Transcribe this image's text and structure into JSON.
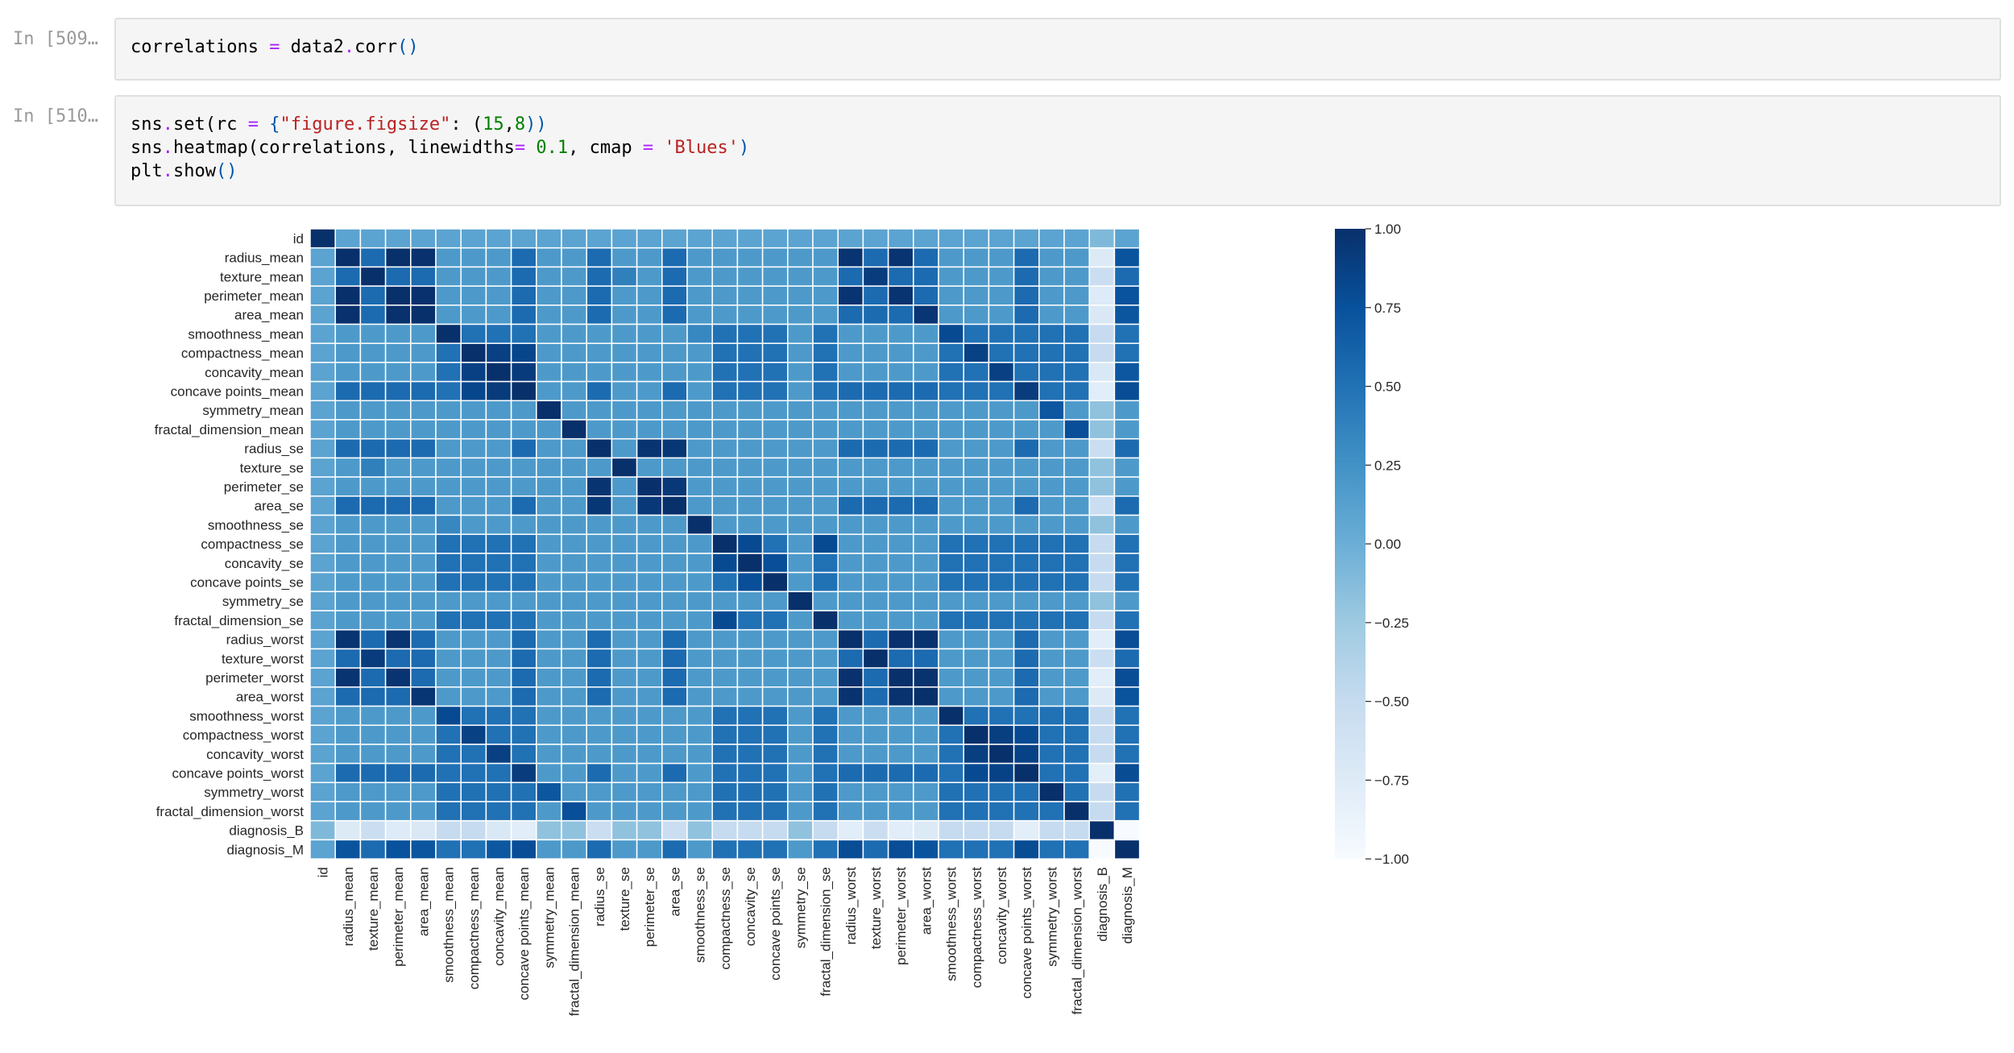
{
  "cells": [
    {
      "prompt": "In [509…",
      "code_lines": [
        [
          {
            "t": "correlations "
          },
          {
            "t": "=",
            "c": "op"
          },
          {
            "t": " data2"
          },
          {
            "t": ".",
            "c": "op"
          },
          {
            "t": "corr"
          },
          {
            "t": "()",
            "c": "par"
          }
        ]
      ]
    },
    {
      "prompt": "In [510…",
      "code_lines": [
        [
          {
            "t": "sns"
          },
          {
            "t": ".",
            "c": "op"
          },
          {
            "t": "set(rc "
          },
          {
            "t": "=",
            "c": "op"
          },
          {
            "t": " {",
            "c": "par"
          },
          {
            "t": "\"figure.figsize\"",
            "c": "str"
          },
          {
            "t": ": ("
          },
          {
            "t": "15",
            "c": "num"
          },
          {
            "t": ","
          },
          {
            "t": "8",
            "c": "num"
          },
          {
            "t": "))",
            "c": "par"
          }
        ],
        [
          {
            "t": "sns"
          },
          {
            "t": ".",
            "c": "op"
          },
          {
            "t": "heatmap(correlations, linewidths"
          },
          {
            "t": "=",
            "c": "op"
          },
          {
            "t": " "
          },
          {
            "t": "0.1",
            "c": "num"
          },
          {
            "t": ", cmap "
          },
          {
            "t": "=",
            "c": "op"
          },
          {
            "t": " "
          },
          {
            "t": "'Blues'",
            "c": "str"
          },
          {
            "t": ")",
            "c": "par"
          }
        ],
        [
          {
            "t": "plt"
          },
          {
            "t": ".",
            "c": "op"
          },
          {
            "t": "show"
          },
          {
            "t": "()",
            "c": "par"
          }
        ]
      ]
    }
  ],
  "chart_data": {
    "type": "heatmap",
    "colormap": "Blues",
    "vmin": -1.0,
    "vmax": 1.0,
    "colorbar_ticks": [
      "1.00",
      "0.75",
      "0.50",
      "0.25",
      "0.00",
      "−0.25",
      "−0.50",
      "−0.75",
      "−1.00"
    ],
    "labels": [
      "id",
      "radius_mean",
      "texture_mean",
      "perimeter_mean",
      "area_mean",
      "smoothness_mean",
      "compactness_mean",
      "concavity_mean",
      "concave points_mean",
      "symmetry_mean",
      "fractal_dimension_mean",
      "radius_se",
      "texture_se",
      "perimeter_se",
      "area_se",
      "smoothness_se",
      "compactness_se",
      "concavity_se",
      "concave points_se",
      "symmetry_se",
      "fractal_dimension_se",
      "radius_worst",
      "texture_worst",
      "perimeter_worst",
      "area_worst",
      "smoothness_worst",
      "compactness_worst",
      "concavity_worst",
      "concave points_worst",
      "symmetry_worst",
      "fractal_dimension_worst",
      "diagnosis_B",
      "diagnosis_M"
    ],
    "groups": [
      [
        1,
        2,
        3,
        4,
        8,
        11,
        14,
        21,
        22,
        23,
        24,
        28,
        32,
        0
      ],
      [
        5,
        6,
        7,
        8,
        16,
        17,
        18,
        20,
        25,
        26,
        27,
        28,
        29,
        30,
        32,
        0
      ]
    ],
    "notable_pairs": [
      [
        1,
        3,
        1.0
      ],
      [
        1,
        4,
        0.99
      ],
      [
        3,
        4,
        0.99
      ],
      [
        21,
        23,
        0.99
      ],
      [
        21,
        24,
        0.98
      ],
      [
        23,
        24,
        0.98
      ],
      [
        1,
        21,
        0.97
      ],
      [
        1,
        23,
        0.97
      ],
      [
        3,
        21,
        0.97
      ],
      [
        3,
        23,
        0.97
      ],
      [
        4,
        24,
        0.96
      ],
      [
        11,
        14,
        0.95
      ],
      [
        11,
        13,
        0.97
      ],
      [
        13,
        14,
        0.94
      ],
      [
        6,
        7,
        0.88
      ],
      [
        6,
        8,
        0.83
      ],
      [
        7,
        8,
        0.92
      ],
      [
        26,
        27,
        0.89
      ],
      [
        27,
        28,
        0.86
      ],
      [
        26,
        28,
        0.8
      ],
      [
        16,
        17,
        0.8
      ],
      [
        17,
        18,
        0.77
      ],
      [
        16,
        20,
        0.8
      ],
      [
        2,
        22,
        0.91
      ],
      [
        8,
        28,
        0.91
      ],
      [
        8,
        32,
        0.78
      ],
      [
        28,
        32,
        0.79
      ],
      [
        23,
        32,
        0.78
      ],
      [
        21,
        32,
        0.78
      ],
      [
        3,
        32,
        0.74
      ],
      [
        1,
        32,
        0.73
      ],
      [
        24,
        32,
        0.73
      ],
      [
        4,
        32,
        0.71
      ],
      [
        7,
        32,
        0.7
      ],
      [
        5,
        25,
        0.8
      ],
      [
        9,
        29,
        0.7
      ],
      [
        6,
        26,
        0.87
      ],
      [
        7,
        27,
        0.88
      ],
      [
        10,
        30,
        0.77
      ],
      [
        12,
        2,
        0.39
      ],
      [
        15,
        5,
        0.33
      ],
      [
        31,
        32,
        -1.0
      ]
    ]
  }
}
